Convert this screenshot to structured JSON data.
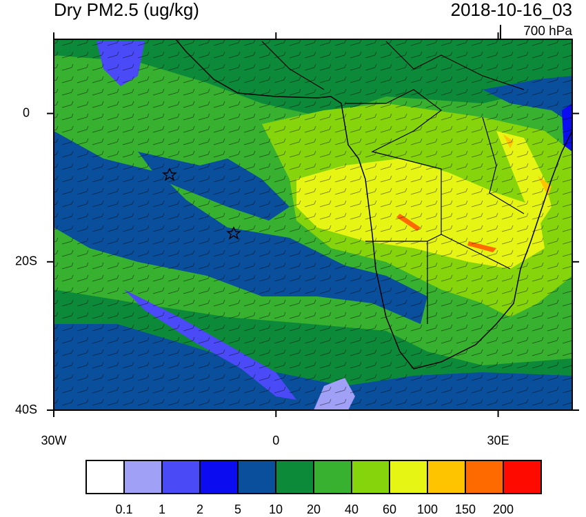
{
  "map": {
    "title": "Dry PM2.5 (ug/kg)",
    "valid_time": "2018-10-16_03",
    "level": "700 hPa",
    "xlim": [
      -30,
      40
    ],
    "ylim": [
      -40,
      10
    ],
    "xticks": [
      {
        "value": -30,
        "label": "30W"
      },
      0,
      {
        "value": 30,
        "label": "30E"
      }
    ],
    "yticks": [
      0,
      {
        "value": -20,
        "label": "20S"
      },
      {
        "value": -40,
        "label": "40S"
      }
    ],
    "colorbar": {
      "levels": [
        0.1,
        1,
        2,
        5,
        10,
        20,
        40,
        60,
        100,
        150,
        200
      ],
      "colors": [
        "#ffffff",
        "#a0a0f6",
        "#4a4af6",
        "#0c0cf0",
        "#0a4f9c",
        "#0c8a3a",
        "#38b030",
        "#86d40c",
        "#e6f514",
        "#ffc400",
        "#ff6a00",
        "#ff0a00"
      ]
    }
  }
}
